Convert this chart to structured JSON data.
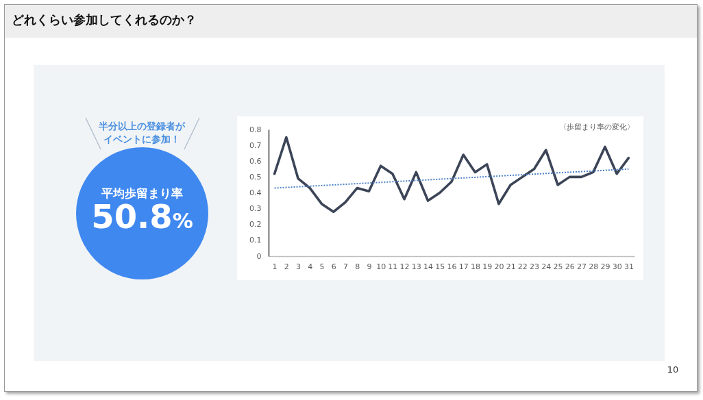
{
  "chart_data": {
    "type": "line",
    "title": "どれくらい参加してくれるのか？",
    "subtitle": "〈歩留まり率の変化〉",
    "annotations": [
      "半分以上の登録者が",
      "イベントに参加！",
      "平均歩留まり率",
      "50.8%",
      "10"
    ],
    "x": [
      1,
      2,
      3,
      4,
      5,
      6,
      7,
      8,
      9,
      10,
      11,
      12,
      13,
      14,
      15,
      16,
      17,
      18,
      19,
      20,
      21,
      22,
      23,
      24,
      25,
      26,
      27,
      28,
      29,
      30,
      31
    ],
    "xlim": [
      0.5,
      31.5
    ],
    "xticks": [
      1,
      2,
      3,
      4,
      5,
      6,
      7,
      8,
      9,
      10,
      11,
      12,
      13,
      14,
      15,
      16,
      17,
      18,
      19,
      20,
      21,
      22,
      23,
      24,
      25,
      26,
      27,
      28,
      29,
      30,
      31
    ],
    "ylim": [
      0,
      0.8
    ],
    "yticks": [
      0,
      0.1,
      0.2,
      0.3,
      0.4,
      0.5,
      0.6,
      0.7,
      0.8
    ],
    "series": [
      {
        "color": "#3c4557",
        "values": [
          0.52,
          0.75,
          0.49,
          0.43,
          0.33,
          0.28,
          0.34,
          0.43,
          0.41,
          0.57,
          0.52,
          0.36,
          0.53,
          0.35,
          0.4,
          0.47,
          0.64,
          0.53,
          0.58,
          0.33,
          0.45,
          0.5,
          0.55,
          0.67,
          0.45,
          0.5,
          0.5,
          0.53,
          0.69,
          0.52,
          0.62
        ]
      },
      {
        "type": "line",
        "x": [
          1,
          31
        ],
        "values": [
          0.43,
          0.55
        ],
        "color": "#4a80c4",
        "line_style": "dotted"
      }
    ]
  }
}
